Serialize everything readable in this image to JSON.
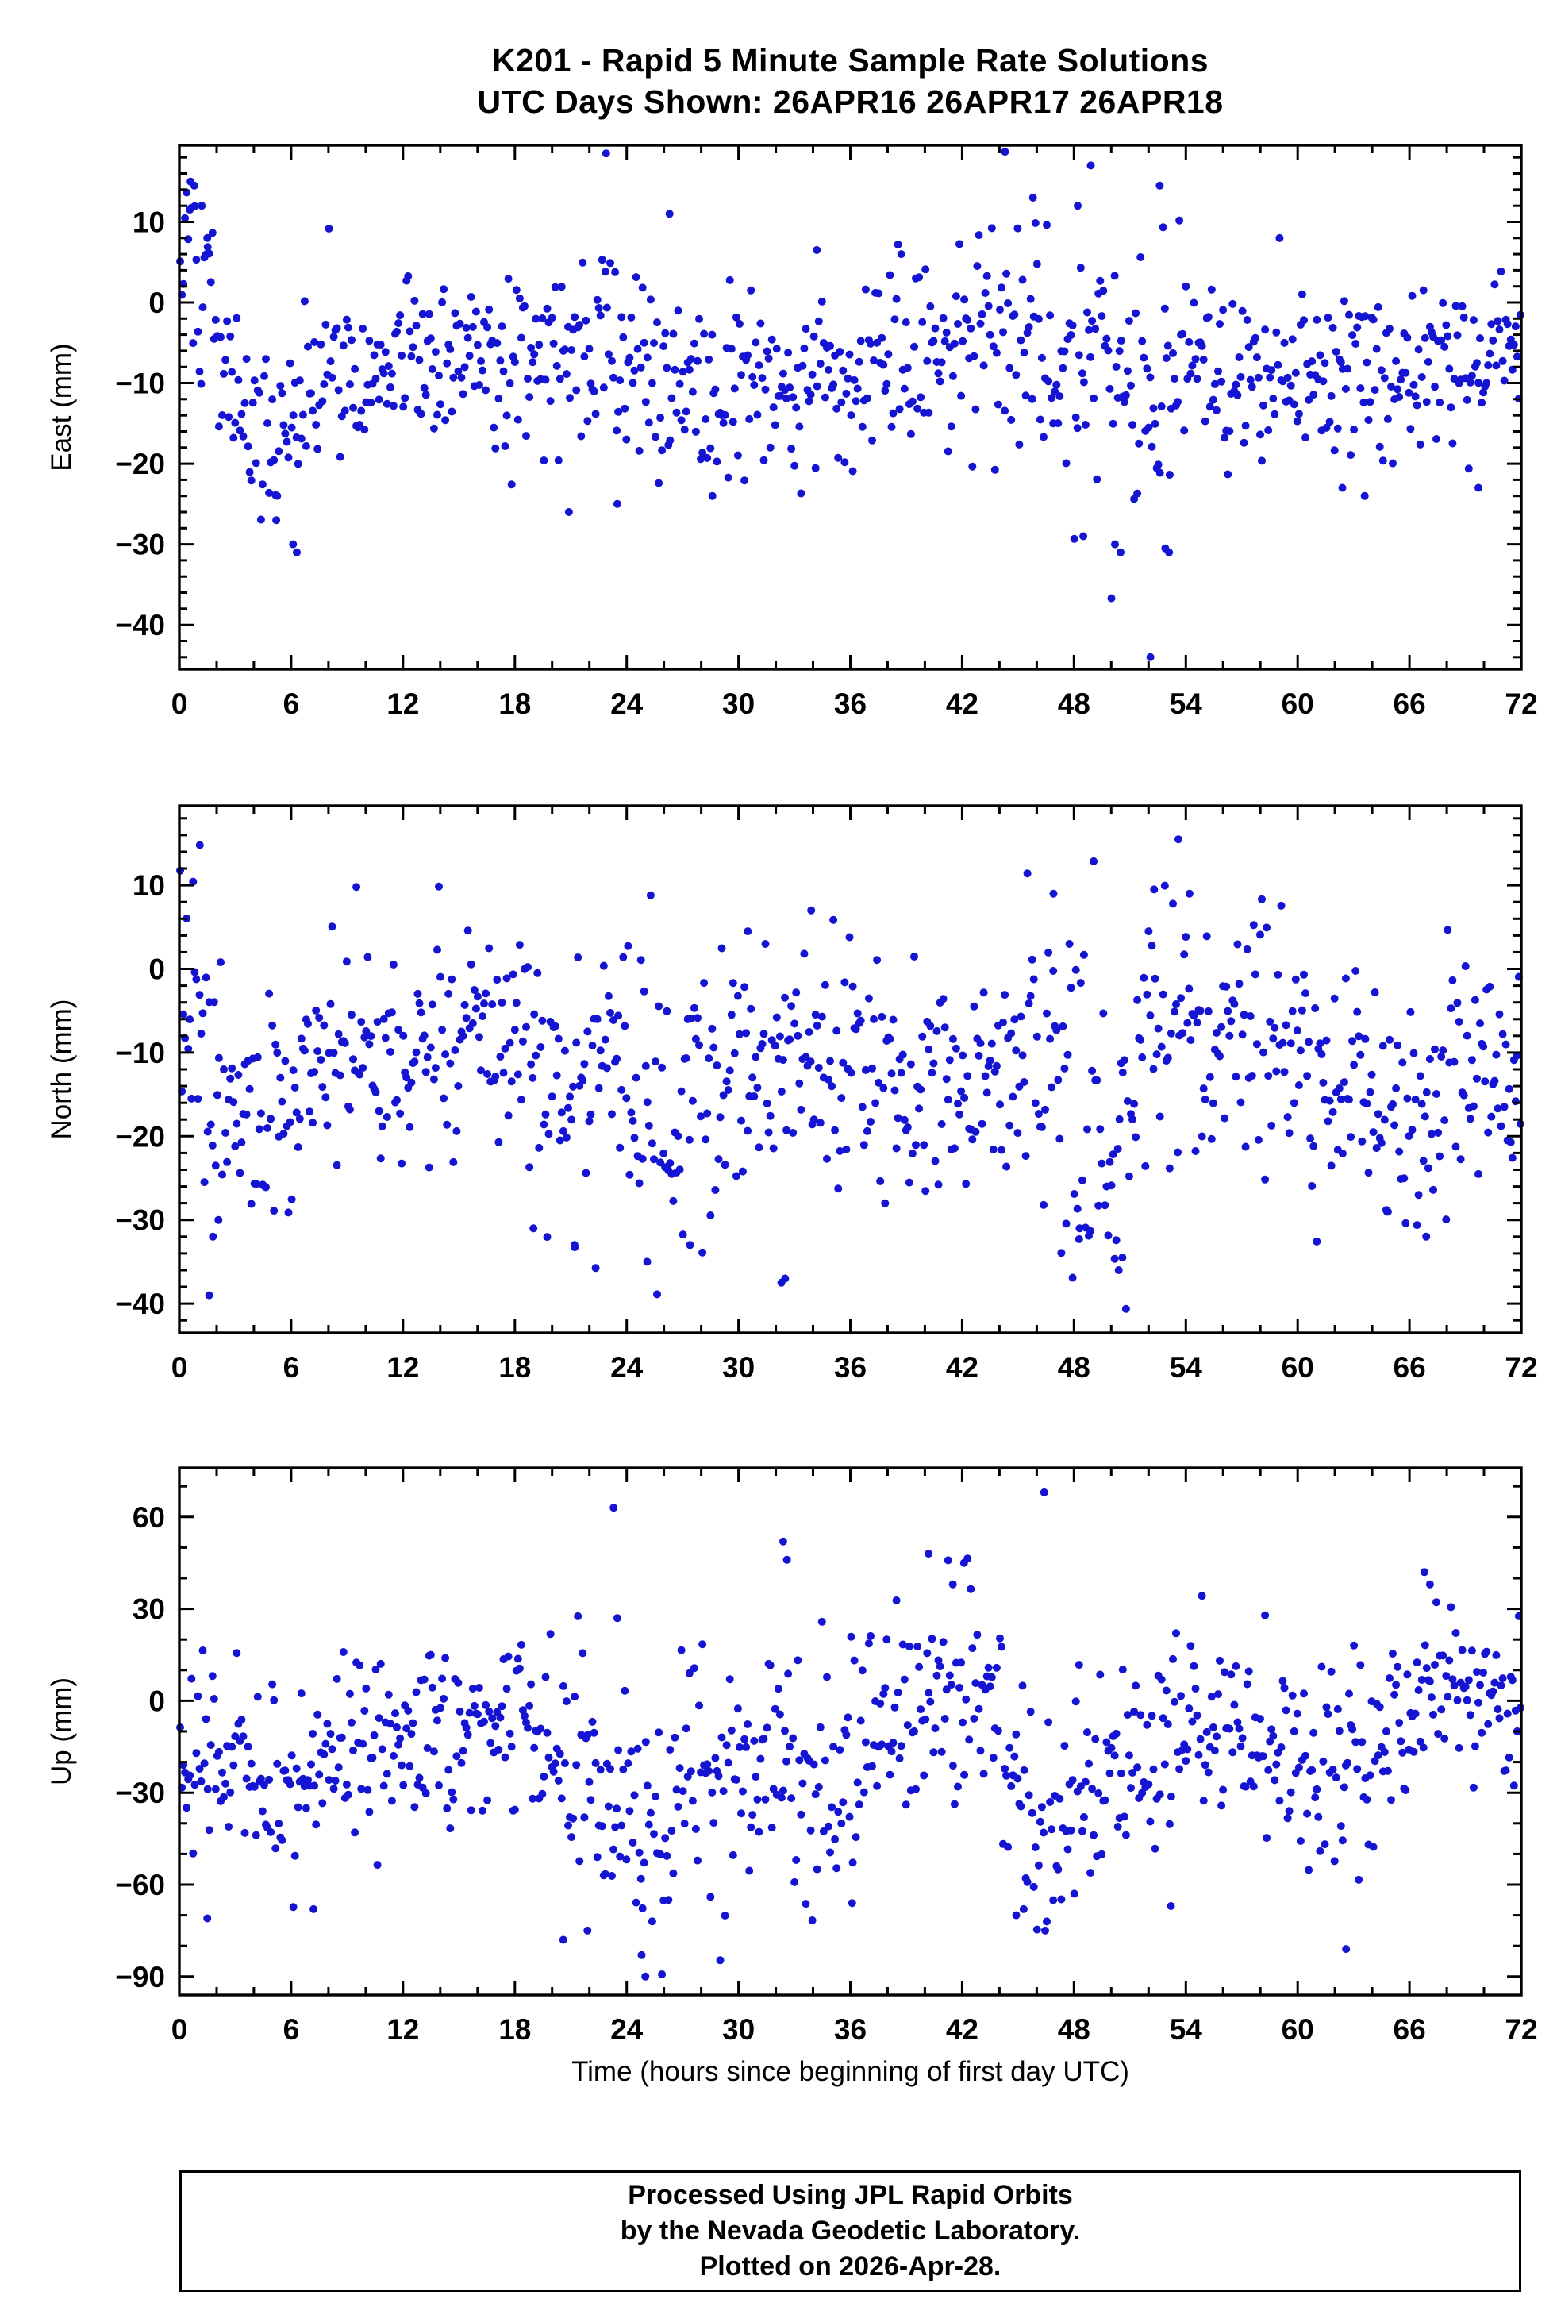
{
  "title": {
    "line1": "K201 - Rapid 5 Minute Sample Rate Solutions",
    "line2": "UTC Days Shown:  26APR16 26APR17 26APR18"
  },
  "xlabel": "Time (hours since beginning of first day UTC)",
  "footer": {
    "lines": [
      "Processed Using JPL Rapid Orbits",
      "by the Nevada Geodetic Laboratory.",
      "Plotted on 2026-Apr-28."
    ]
  },
  "style": {
    "marker_color": "#1414d2",
    "axis_color": "#000000",
    "background": "#ffffff"
  },
  "chart_data": [
    {
      "name": "east",
      "type": "scatter",
      "ylabel": "East (mm)",
      "xlim": [
        0,
        72
      ],
      "ylim": [
        -45.5,
        19.5
      ],
      "xticks": [
        0,
        6,
        12,
        18,
        24,
        30,
        36,
        42,
        48,
        54,
        60,
        66,
        72
      ],
      "xminor": 2,
      "yticks": [
        10,
        0,
        -10,
        -20,
        -30,
        -40
      ],
      "ymajor": 10,
      "yminor": 2,
      "n": 830,
      "seed": 101,
      "trend": [
        [
          0,
          4
        ],
        [
          0.8,
          7
        ],
        [
          1.5,
          0
        ],
        [
          2.5,
          -8
        ],
        [
          3.5,
          -15
        ],
        [
          5,
          -18
        ],
        [
          6,
          -16
        ],
        [
          7,
          -10
        ],
        [
          8,
          -7
        ],
        [
          10,
          -8
        ],
        [
          12,
          -6
        ],
        [
          14,
          -7
        ],
        [
          16,
          -8
        ],
        [
          18,
          -8
        ],
        [
          20,
          -7
        ],
        [
          22,
          -5
        ],
        [
          24,
          -6
        ],
        [
          26,
          -8
        ],
        [
          28,
          -10
        ],
        [
          30,
          -10
        ],
        [
          32,
          -11
        ],
        [
          33,
          -12
        ],
        [
          34,
          -10
        ],
        [
          36,
          -8
        ],
        [
          38,
          -6
        ],
        [
          40,
          -4
        ],
        [
          42,
          -3
        ],
        [
          44,
          -2
        ],
        [
          46,
          -3
        ],
        [
          47,
          -5
        ],
        [
          48,
          -10
        ],
        [
          49,
          -12
        ],
        [
          50,
          -9
        ],
        [
          51,
          -11
        ],
        [
          52,
          -12
        ],
        [
          53,
          -9
        ],
        [
          54,
          -7
        ],
        [
          56,
          -8
        ],
        [
          58,
          -8
        ],
        [
          60,
          -7
        ],
        [
          62,
          -10
        ],
        [
          64,
          -9
        ],
        [
          66,
          -7
        ],
        [
          68,
          -8
        ],
        [
          70,
          -6
        ],
        [
          71,
          -4
        ],
        [
          72,
          -5
        ]
      ],
      "sigma": [
        [
          0,
          5
        ],
        [
          1,
          6
        ],
        [
          3,
          6
        ],
        [
          5,
          6
        ],
        [
          7,
          5
        ],
        [
          10,
          5
        ],
        [
          14,
          5
        ],
        [
          18,
          5
        ],
        [
          22,
          6
        ],
        [
          26,
          6
        ],
        [
          30,
          6
        ],
        [
          34,
          6
        ],
        [
          38,
          6
        ],
        [
          42,
          7
        ],
        [
          45,
          7
        ],
        [
          48,
          9
        ],
        [
          51,
          9
        ],
        [
          53,
          8
        ],
        [
          55,
          6
        ],
        [
          58,
          5
        ],
        [
          62,
          6
        ],
        [
          66,
          5
        ],
        [
          70,
          6
        ],
        [
          72,
          5
        ]
      ],
      "outliers": [
        [
          0.6,
          15
        ],
        [
          0.8,
          14.5
        ],
        [
          1.2,
          12
        ],
        [
          1.5,
          8
        ],
        [
          22.9,
          18.5
        ],
        [
          26.3,
          11
        ],
        [
          34.2,
          6.5
        ],
        [
          44.3,
          18.7
        ],
        [
          45.8,
          13
        ],
        [
          48.9,
          17
        ],
        [
          48.2,
          12
        ],
        [
          52.6,
          14.5
        ],
        [
          52.1,
          -44
        ],
        [
          50.2,
          -30
        ],
        [
          50.5,
          -31
        ],
        [
          52.9,
          -30.5
        ],
        [
          53.1,
          -31
        ],
        [
          6.1,
          -30
        ],
        [
          6.3,
          -31
        ],
        [
          5.2,
          -27
        ],
        [
          20.9,
          -26
        ],
        [
          23.5,
          -25
        ],
        [
          28.6,
          -24
        ],
        [
          48.5,
          -29
        ],
        [
          62.4,
          -23
        ],
        [
          63.6,
          -24
        ],
        [
          69.7,
          -23
        ]
      ]
    },
    {
      "name": "north",
      "type": "scatter",
      "ylabel": "North (mm)",
      "xlim": [
        0,
        72
      ],
      "ylim": [
        -43.5,
        19.5
      ],
      "xticks": [
        0,
        6,
        12,
        18,
        24,
        30,
        36,
        42,
        48,
        54,
        60,
        66,
        72
      ],
      "xminor": 2,
      "yticks": [
        10,
        0,
        -10,
        -20,
        -30,
        -40
      ],
      "ymajor": 10,
      "yminor": 2,
      "n": 830,
      "seed": 202,
      "trend": [
        [
          0,
          -2
        ],
        [
          0.8,
          -4
        ],
        [
          1.5,
          -14
        ],
        [
          2.5,
          -20
        ],
        [
          3.5,
          -17
        ],
        [
          5,
          -15
        ],
        [
          6,
          -13
        ],
        [
          8,
          -9
        ],
        [
          10,
          -12
        ],
        [
          12,
          -11
        ],
        [
          14,
          -9
        ],
        [
          16,
          -11
        ],
        [
          18,
          -10
        ],
        [
          20,
          -12
        ],
        [
          22,
          -11
        ],
        [
          24,
          -14
        ],
        [
          26,
          -17
        ],
        [
          28,
          -16
        ],
        [
          30,
          -13
        ],
        [
          32,
          -12
        ],
        [
          34,
          -9
        ],
        [
          36,
          -12
        ],
        [
          38,
          -13
        ],
        [
          40,
          -12
        ],
        [
          42,
          -13
        ],
        [
          44,
          -11
        ],
        [
          46,
          -10
        ],
        [
          47,
          -14
        ],
        [
          48,
          -17
        ],
        [
          49,
          -19
        ],
        [
          50,
          -20
        ],
        [
          51,
          -14
        ],
        [
          52,
          -7
        ],
        [
          53,
          -6
        ],
        [
          54,
          -8
        ],
        [
          55,
          -9
        ],
        [
          56,
          -10
        ],
        [
          57,
          -8
        ],
        [
          58,
          -11
        ],
        [
          59,
          -9
        ],
        [
          60,
          -10
        ],
        [
          61,
          -12
        ],
        [
          62,
          -13
        ],
        [
          63,
          -14
        ],
        [
          64,
          -15
        ],
        [
          65,
          -17
        ],
        [
          66,
          -18
        ],
        [
          67,
          -15
        ],
        [
          68,
          -12
        ],
        [
          69,
          -11
        ],
        [
          70,
          -12
        ],
        [
          71,
          -14
        ],
        [
          72,
          -14
        ]
      ],
      "sigma": [
        [
          0,
          7
        ],
        [
          2,
          8
        ],
        [
          4,
          7
        ],
        [
          8,
          7
        ],
        [
          12,
          7
        ],
        [
          16,
          7
        ],
        [
          20,
          8
        ],
        [
          24,
          8
        ],
        [
          28,
          8
        ],
        [
          32,
          8
        ],
        [
          36,
          7
        ],
        [
          40,
          7
        ],
        [
          44,
          7
        ],
        [
          48,
          9
        ],
        [
          50,
          10
        ],
        [
          52,
          8
        ],
        [
          56,
          7
        ],
        [
          60,
          7
        ],
        [
          64,
          7
        ],
        [
          68,
          7
        ],
        [
          72,
          6
        ]
      ],
      "outliers": [
        [
          1.1,
          14.8
        ],
        [
          53.6,
          15.5
        ],
        [
          46.9,
          9
        ],
        [
          52.3,
          9.5
        ],
        [
          54.2,
          9
        ],
        [
          30.5,
          4.5
        ],
        [
          33.9,
          7
        ],
        [
          1.6,
          -39
        ],
        [
          1.8,
          -32
        ],
        [
          2.1,
          -30
        ],
        [
          25.1,
          -35
        ],
        [
          27.4,
          -33
        ],
        [
          32.3,
          -37.5
        ],
        [
          32.5,
          -37
        ],
        [
          50.4,
          -36
        ],
        [
          50.6,
          -34.5
        ],
        [
          48.3,
          -31
        ],
        [
          64.8,
          -29
        ],
        [
          66.9,
          -32
        ],
        [
          19.0,
          -31
        ],
        [
          21.2,
          -33
        ]
      ]
    },
    {
      "name": "up",
      "type": "scatter",
      "ylabel": "Up (mm)",
      "xlim": [
        0,
        72
      ],
      "ylim": [
        -96,
        76
      ],
      "xticks": [
        0,
        6,
        12,
        18,
        24,
        30,
        36,
        42,
        48,
        54,
        60,
        66,
        72
      ],
      "xminor": 2,
      "yticks": [
        60,
        30,
        0,
        -30,
        -60,
        -90
      ],
      "ymajor": 30,
      "yminor": 10,
      "n": 830,
      "seed": 303,
      "trend": [
        [
          0,
          -10
        ],
        [
          2,
          -20
        ],
        [
          4,
          -25
        ],
        [
          6,
          -30
        ],
        [
          8,
          -15
        ],
        [
          10,
          -10
        ],
        [
          13,
          -12
        ],
        [
          16,
          -8
        ],
        [
          18,
          -5
        ],
        [
          20,
          -25
        ],
        [
          22,
          -20
        ],
        [
          24,
          -30
        ],
        [
          26,
          -40
        ],
        [
          28,
          -20
        ],
        [
          30,
          -25
        ],
        [
          32,
          -20
        ],
        [
          34,
          -30
        ],
        [
          36,
          -25
        ],
        [
          38,
          -5
        ],
        [
          40,
          5
        ],
        [
          42,
          10
        ],
        [
          44,
          -20
        ],
        [
          46,
          -45
        ],
        [
          48,
          -30
        ],
        [
          50,
          -20
        ],
        [
          52,
          -25
        ],
        [
          54,
          -10
        ],
        [
          56,
          -5
        ],
        [
          58,
          -15
        ],
        [
          60,
          -20
        ],
        [
          62,
          -25
        ],
        [
          64,
          -20
        ],
        [
          66,
          -5
        ],
        [
          67,
          0
        ],
        [
          68,
          5
        ],
        [
          70,
          0
        ],
        [
          72,
          -10
        ]
      ],
      "sigma": [
        [
          0,
          12
        ],
        [
          4,
          18
        ],
        [
          8,
          15
        ],
        [
          12,
          12
        ],
        [
          16,
          14
        ],
        [
          20,
          20
        ],
        [
          24,
          22
        ],
        [
          28,
          18
        ],
        [
          32,
          18
        ],
        [
          36,
          15
        ],
        [
          40,
          18
        ],
        [
          44,
          20
        ],
        [
          48,
          18
        ],
        [
          52,
          16
        ],
        [
          56,
          15
        ],
        [
          60,
          14
        ],
        [
          64,
          15
        ],
        [
          68,
          12
        ],
        [
          72,
          12
        ]
      ],
      "outliers": [
        [
          23.3,
          63
        ],
        [
          23.5,
          27
        ],
        [
          46.4,
          68
        ],
        [
          32.4,
          52
        ],
        [
          32.6,
          46
        ],
        [
          40.2,
          48
        ],
        [
          42.1,
          45
        ],
        [
          41.5,
          38
        ],
        [
          66.8,
          42
        ],
        [
          67.1,
          38
        ],
        [
          25.0,
          -90
        ],
        [
          24.8,
          -83
        ],
        [
          20.6,
          -78
        ],
        [
          21.9,
          -75
        ],
        [
          62.6,
          -81
        ],
        [
          44.9,
          -70
        ],
        [
          45.3,
          -68
        ],
        [
          1.5,
          -71
        ],
        [
          7.2,
          -68
        ],
        [
          53.2,
          -67
        ],
        [
          36.1,
          -66
        ]
      ]
    }
  ]
}
